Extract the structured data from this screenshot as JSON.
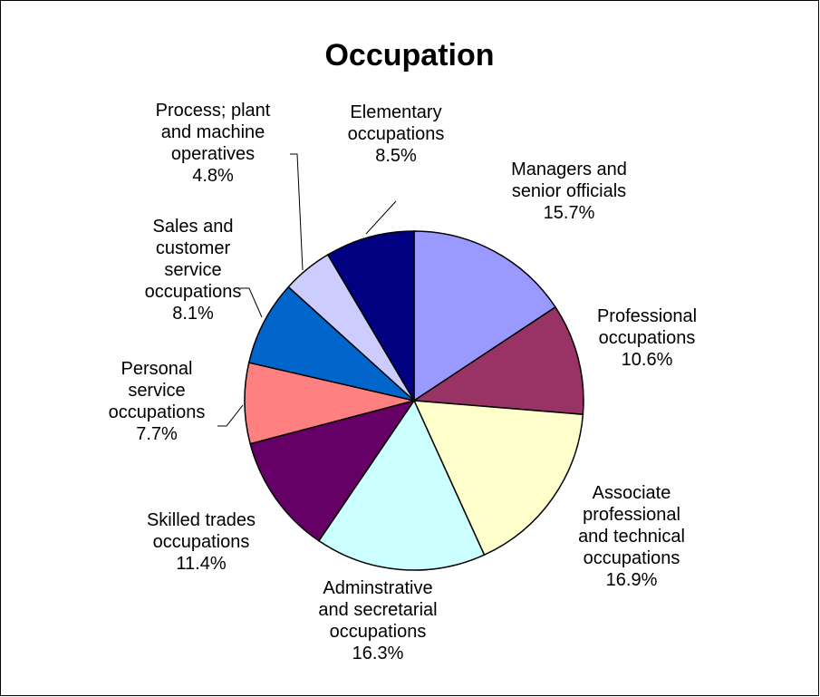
{
  "chart_data": {
    "type": "pie",
    "title": "Occupation",
    "categories": [
      "Managers and senior officials",
      "Professional occupations",
      "Associate professional and technical occupations",
      "Adminstrative and secretarial occupations",
      "Skilled trades occupations",
      "Personal service occupations",
      "Sales and customer service occupations",
      "Process; plant and machine operatives",
      "Elementary occupations"
    ],
    "values": [
      15.7,
      10.6,
      16.9,
      16.3,
      11.4,
      7.7,
      8.1,
      4.8,
      8.5
    ],
    "value_labels": [
      "15.7%",
      "10.6%",
      "16.9%",
      "16.3%",
      "11.4%",
      "7.7%",
      "8.1%",
      "4.8%",
      "8.5%"
    ],
    "colors": [
      "#9999ff",
      "#993366",
      "#ffffcc",
      "#ccffff",
      "#660066",
      "#ff8080",
      "#0066cc",
      "#ccccff",
      "#000080"
    ]
  }
}
